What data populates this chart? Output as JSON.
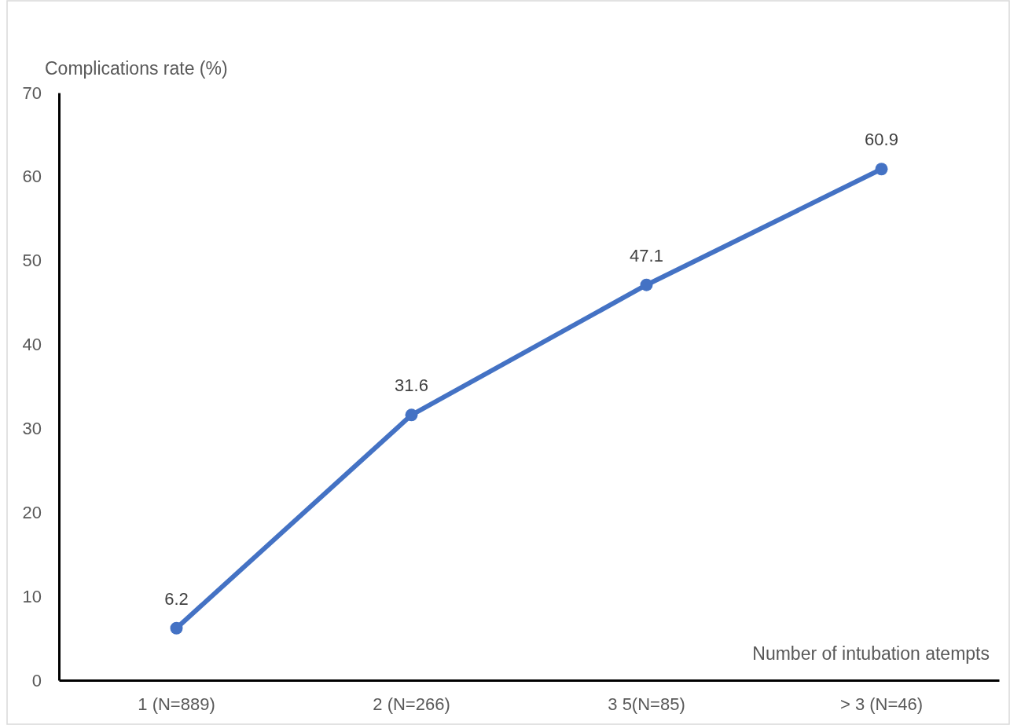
{
  "chart_data": {
    "type": "line",
    "xlabel": "Number of intubation atempts",
    "ylabel": "Complications rate (%)",
    "categories": [
      "1 (N=889)",
      "2 (N=266)",
      "3 5(N=85)",
      "> 3 (N=46)"
    ],
    "series": [
      {
        "color": "#4472c4",
        "values": [
          6.2,
          31.6,
          47.1,
          60.9
        ]
      }
    ],
    "ylim": [
      0,
      70
    ],
    "yticks": [
      0,
      10,
      20,
      30,
      40,
      50,
      60,
      70
    ],
    "marker": "circle",
    "line_style": "solid",
    "data_labels": true
  }
}
